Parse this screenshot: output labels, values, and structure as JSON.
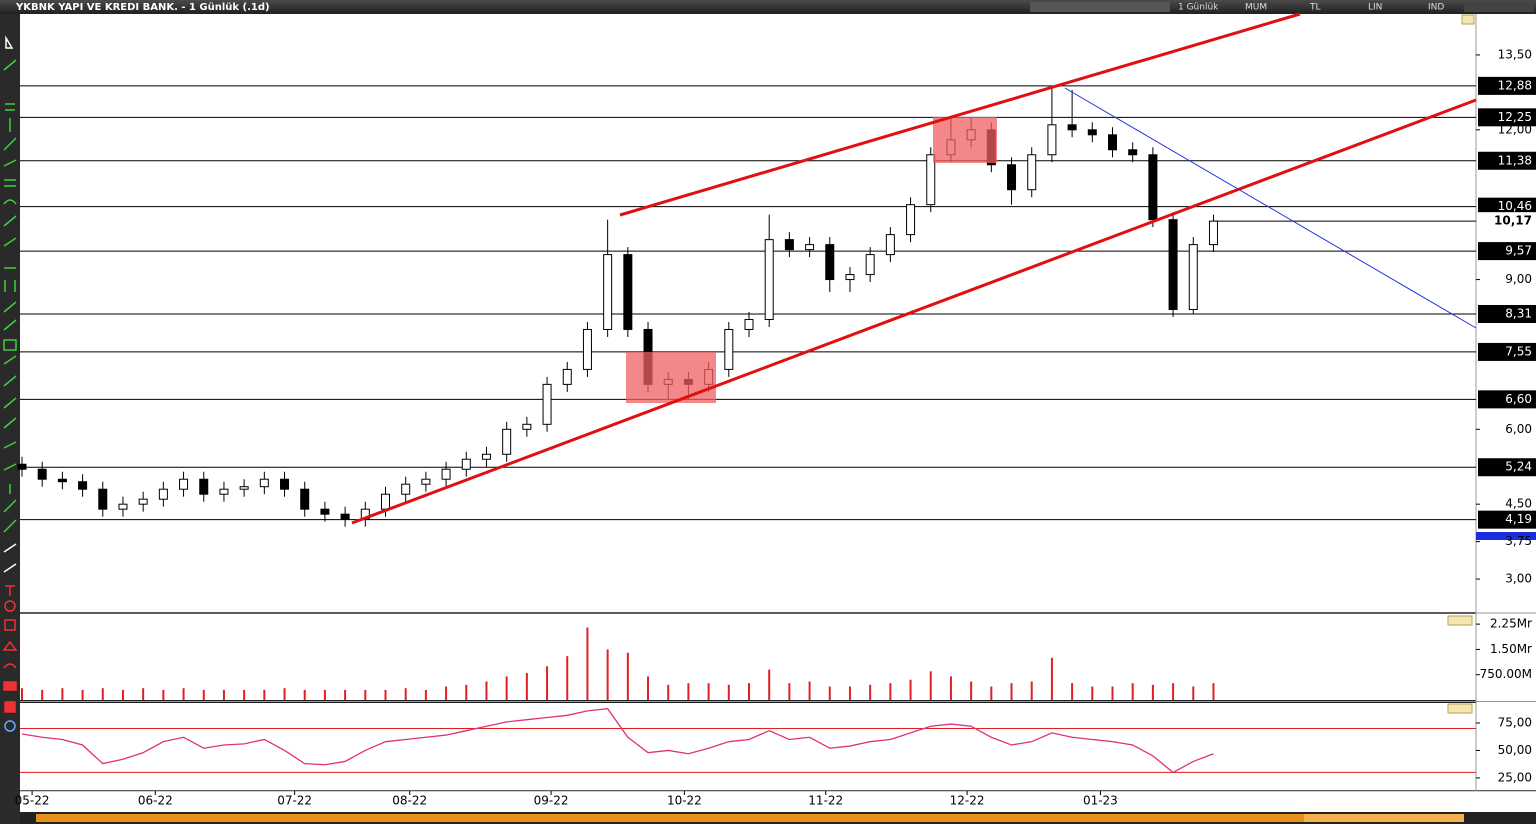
{
  "window": {
    "title": "YKBNK YAPI VE KREDI BANK. - 1 Günlük (.1d)",
    "toolbar": [
      "1 Günlük",
      "MUM",
      "TL",
      "LIN",
      "IND"
    ]
  },
  "chart_data": [
    {
      "type": "candlestick",
      "xlim": [
        0,
        72
      ],
      "xticks": [
        {
          "value": 0.5,
          "label": "05-22"
        },
        {
          "value": 6.6,
          "label": "06-22"
        },
        {
          "value": 13.5,
          "label": "07-22"
        },
        {
          "value": 19.2,
          "label": "08-22"
        },
        {
          "value": 26.2,
          "label": "09-22"
        },
        {
          "value": 32.8,
          "label": "10-22"
        },
        {
          "value": 39.8,
          "label": "11-22"
        },
        {
          "value": 46.8,
          "label": "12-22"
        },
        {
          "value": 53.4,
          "label": "01-23"
        }
      ],
      "ylim": [
        2.34,
        14.32
      ],
      "yticks": [
        {
          "value": 13.5,
          "label": "13,50"
        },
        {
          "value": 12,
          "label": "12,00"
        },
        {
          "value": 9,
          "label": "9,00"
        },
        {
          "value": 6,
          "label": "6,00"
        },
        {
          "value": 4.5,
          "label": "4,50"
        },
        {
          "value": 3.75,
          "label": "3,75"
        },
        {
          "value": 3,
          "label": "3,00"
        }
      ],
      "levels": [
        {
          "value": 12.88,
          "label": "12,88"
        },
        {
          "value": 12.25,
          "label": "12,25"
        },
        {
          "value": 11.38,
          "label": "11,38"
        },
        {
          "value": 10.46,
          "label": "10,46"
        },
        {
          "value": 9.57,
          "label": "9,57"
        },
        {
          "value": 8.31,
          "label": "8,31"
        },
        {
          "value": 7.55,
          "label": "7,55"
        },
        {
          "value": 6.6,
          "label": "6,60"
        },
        {
          "value": 5.24,
          "label": "5,24"
        },
        {
          "value": 4.19,
          "label": "4,19"
        }
      ],
      "last": {
        "value": 10.17,
        "label": "10,17"
      },
      "open": [
        5.3,
        5.2,
        5.0,
        4.95,
        4.8,
        4.4,
        4.5,
        4.6,
        4.8,
        5.0,
        4.7,
        4.8,
        4.85,
        5.0,
        4.8,
        4.4,
        4.3,
        4.2,
        4.4,
        4.7,
        4.9,
        5.0,
        5.2,
        5.4,
        5.5,
        6.0,
        6.1,
        6.9,
        7.2,
        8.0,
        9.5,
        8.0,
        6.9,
        7.0,
        6.9,
        7.2,
        8.0,
        8.2,
        9.8,
        9.6,
        9.7,
        9.0,
        9.1,
        9.5,
        9.9,
        10.5,
        11.5,
        11.8,
        12.0,
        11.3,
        10.8,
        11.5,
        12.1,
        12.0,
        11.9,
        11.6,
        11.5,
        10.2,
        8.4,
        9.7
      ],
      "high": [
        5.45,
        5.35,
        5.15,
        5.1,
        4.95,
        4.65,
        4.75,
        4.95,
        5.15,
        5.15,
        4.95,
        5.0,
        5.15,
        5.15,
        4.95,
        4.55,
        4.45,
        4.55,
        4.85,
        5.05,
        5.15,
        5.35,
        5.55,
        5.65,
        6.15,
        6.25,
        7.05,
        7.35,
        8.15,
        10.2,
        9.65,
        8.15,
        7.15,
        7.15,
        7.35,
        8.15,
        8.35,
        10.3,
        9.95,
        9.85,
        9.85,
        9.25,
        9.65,
        10.05,
        10.65,
        11.65,
        12.25,
        12.25,
        12.15,
        11.45,
        11.65,
        12.88,
        12.8,
        12.15,
        12.05,
        11.75,
        11.65,
        10.35,
        9.85,
        10.3
      ],
      "low": [
        5.05,
        4.85,
        4.8,
        4.65,
        4.25,
        4.25,
        4.35,
        4.45,
        4.65,
        4.55,
        4.55,
        4.65,
        4.7,
        4.65,
        4.25,
        4.15,
        4.05,
        4.05,
        4.25,
        4.55,
        4.75,
        4.85,
        5.05,
        5.25,
        5.35,
        5.85,
        5.95,
        6.75,
        7.05,
        7.85,
        7.85,
        6.75,
        6.6,
        6.6,
        6.75,
        7.05,
        7.85,
        8.05,
        9.45,
        9.45,
        8.75,
        8.75,
        8.95,
        9.35,
        9.75,
        10.35,
        11.35,
        11.65,
        11.15,
        10.5,
        10.65,
        11.35,
        11.85,
        11.75,
        11.45,
        11.35,
        10.05,
        8.25,
        8.31,
        9.55
      ],
      "close": [
        5.2,
        5.0,
        4.95,
        4.8,
        4.4,
        4.5,
        4.6,
        4.8,
        5.0,
        4.7,
        4.8,
        4.85,
        5.0,
        4.8,
        4.4,
        4.3,
        4.2,
        4.4,
        4.7,
        4.9,
        5.0,
        5.2,
        5.4,
        5.5,
        6.0,
        6.1,
        6.9,
        7.2,
        8.0,
        9.5,
        8.0,
        6.9,
        7.0,
        6.9,
        7.2,
        8.0,
        8.2,
        9.8,
        9.6,
        9.7,
        9.0,
        9.1,
        9.5,
        9.9,
        10.5,
        11.5,
        11.8,
        12.0,
        11.3,
        10.8,
        11.5,
        12.1,
        12.0,
        11.9,
        11.6,
        11.5,
        10.2,
        8.4,
        9.7,
        10.17
      ]
    },
    {
      "type": "bar",
      "color": "#e02020",
      "xlim": [
        0,
        72
      ],
      "ylim": [
        0,
        2.55
      ],
      "yticks": [
        {
          "value": 2.25,
          "label": "2.25Mr"
        },
        {
          "value": 1.5,
          "label": "1.50Mr"
        },
        {
          "value": 0.75,
          "label": "750.00M"
        }
      ],
      "values": [
        0.35,
        0.3,
        0.35,
        0.3,
        0.35,
        0.3,
        0.35,
        0.3,
        0.35,
        0.3,
        0.3,
        0.3,
        0.3,
        0.35,
        0.3,
        0.3,
        0.3,
        0.3,
        0.3,
        0.35,
        0.3,
        0.4,
        0.45,
        0.55,
        0.7,
        0.8,
        1.0,
        1.3,
        2.15,
        1.5,
        1.4,
        0.7,
        0.45,
        0.5,
        0.5,
        0.45,
        0.5,
        0.9,
        0.5,
        0.55,
        0.4,
        0.4,
        0.45,
        0.5,
        0.6,
        0.85,
        0.7,
        0.55,
        0.4,
        0.5,
        0.55,
        1.25,
        0.5,
        0.4,
        0.4,
        0.5,
        0.45,
        0.5,
        0.4,
        0.5
      ]
    },
    {
      "type": "line",
      "color": "#e0307a",
      "band_color": "#e02020",
      "xlim": [
        0,
        72
      ],
      "ylim": [
        14,
        93.2
      ],
      "yticks": [
        {
          "value": 75,
          "label": "75,00"
        },
        {
          "value": 50,
          "label": "50,00"
        },
        {
          "value": 25,
          "label": "25,00"
        }
      ],
      "bands": [
        70,
        30
      ],
      "values": [
        65,
        62,
        60,
        55,
        38,
        42,
        48,
        58,
        62,
        52,
        55,
        56,
        60,
        50,
        38,
        37,
        40,
        50,
        58,
        60,
        62,
        64,
        68,
        72,
        76,
        78,
        80,
        82,
        86,
        88,
        62,
        48,
        50,
        47,
        52,
        58,
        60,
        68,
        60,
        62,
        52,
        54,
        58,
        60,
        66,
        72,
        74,
        72,
        62,
        55,
        58,
        66,
        62,
        60,
        58,
        55,
        45,
        30,
        40,
        47
      ]
    }
  ]
}
